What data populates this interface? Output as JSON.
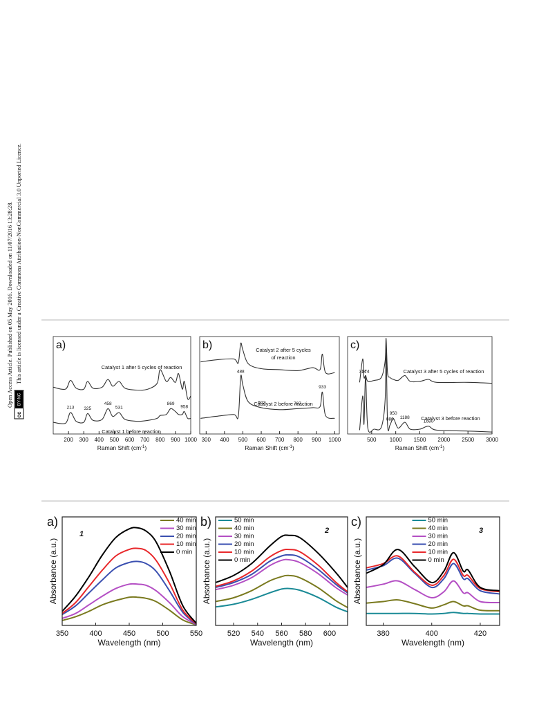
{
  "sidebar": {
    "line1": "Open Access Article. Published on 05 May 2016. Downloaded on 11/07/2016 13:28:28.",
    "line2": "This article is licensed under a Creative Commons Attribution-NonCommercial 3.0 Unported Licence.",
    "badge_cc": "cc",
    "badge_text": "BY-NC"
  },
  "chart_data": [
    {
      "type": "line",
      "panel_label": "a)",
      "xlim": [
        100,
        1000
      ],
      "xticks": [
        200,
        300,
        400,
        500,
        600,
        700,
        800,
        900,
        1000
      ],
      "ylim": [
        0,
        10
      ],
      "xlabel": "Raman Shift (cm",
      "xlabel_sup": "-1",
      "xlabel_end": ")",
      "notes": [
        "Catalyst 1 after 5 cycles of reaction",
        "Catalyst 1 before reaction"
      ],
      "peak_labels": [
        213,
        325,
        458,
        531,
        869,
        958
      ],
      "x": [
        100,
        180,
        213,
        250,
        300,
        325,
        360,
        420,
        458,
        490,
        531,
        570,
        650,
        720,
        780,
        800,
        840,
        869,
        900,
        920,
        945,
        958,
        980,
        1000
      ],
      "series": [
        {
          "color": "#333333",
          "values": [
            4.8,
            4.6,
            5.5,
            4.7,
            4.6,
            5.4,
            4.7,
            4.8,
            5.6,
            4.9,
            5.4,
            4.7,
            4.5,
            4.6,
            5.2,
            6.6,
            5.4,
            5.8,
            5.3,
            6.2,
            4.6,
            5.4,
            3.6,
            3.9
          ]
        },
        {
          "color": "#333333",
          "values": [
            1.2,
            1.1,
            2.2,
            1.3,
            1.2,
            2.1,
            1.4,
            1.5,
            2.6,
            1.8,
            2.2,
            1.5,
            1.3,
            1.4,
            1.6,
            1.9,
            2.0,
            2.6,
            2.3,
            2.0,
            2.0,
            2.3,
            1.6,
            1.6
          ]
        }
      ]
    },
    {
      "type": "line",
      "panel_label": "b)",
      "xlim": [
        265,
        1025
      ],
      "xticks": [
        300,
        400,
        500,
        600,
        700,
        800,
        900,
        1000
      ],
      "ylim": [
        0,
        10
      ],
      "xlabel": "Raman Shift (cm",
      "xlabel_sup": "-1",
      "xlabel_end": ")",
      "notes": [
        "Catalyst 2 after 5 cycles",
        "of reaction",
        "Catalyst 2 before reaction"
      ],
      "peak_labels": [
        488,
        602,
        797,
        933
      ],
      "x": [
        270,
        350,
        450,
        475,
        488,
        500,
        530,
        600,
        700,
        797,
        880,
        920,
        933,
        950,
        1000
      ],
      "series": [
        {
          "color": "#333333",
          "values": [
            7.4,
            7.6,
            7.7,
            7.3,
            9.3,
            8.6,
            7.2,
            6.7,
            6.6,
            6.5,
            6.8,
            6.6,
            8.2,
            6.3,
            6.3
          ]
        },
        {
          "color": "#333333",
          "values": [
            1.6,
            1.8,
            2.0,
            1.8,
            5.9,
            5.0,
            3.3,
            2.7,
            2.5,
            2.6,
            2.7,
            2.8,
            4.3,
            1.9,
            1.6
          ]
        }
      ]
    },
    {
      "type": "line",
      "panel_label": "c)",
      "xlim": [
        0,
        3000
      ],
      "xticks": [
        500,
        1000,
        1500,
        2000,
        2500,
        3000
      ],
      "ylim": [
        0,
        10
      ],
      "xlabel": "Raman Shift (cm",
      "xlabel_sup": "-1",
      "xlabel_end": ")",
      "notes": [
        "Catalyst 3 after 5 cycles of reaction",
        "Catalyst 3 before reaction"
      ],
      "peak_labels": [
        314,
        374,
        880,
        950,
        1188,
        1680
      ],
      "x": [
        250,
        314,
        340,
        374,
        420,
        550,
        700,
        780,
        800,
        830,
        880,
        950,
        1050,
        1188,
        1300,
        1500,
        1680,
        1850,
        2500,
        3000
      ],
      "series": [
        {
          "color": "#333333",
          "values": [
            5.3,
            7.7,
            5.8,
            6.0,
            5.4,
            5.5,
            5.8,
            7.5,
            9.8,
            6.3,
            5.8,
            5.6,
            5.5,
            6.0,
            5.4,
            5.4,
            5.6,
            5.3,
            5.3,
            5.2
          ]
        },
        {
          "color": "#333333",
          "values": [
            0.4,
            3.9,
            1.0,
            5.9,
            0.6,
            0.5,
            0.7,
            3.5,
            9.4,
            1.0,
            0.9,
            1.6,
            0.6,
            1.2,
            0.5,
            0.5,
            0.8,
            0.4,
            0.3,
            0.2
          ]
        }
      ]
    },
    {
      "type": "line",
      "panel_label": "a)",
      "sample_label": "1",
      "legend": "upper right",
      "xlim": [
        350,
        550
      ],
      "xticks": [
        350,
        400,
        450,
        500,
        550
      ],
      "ylim": [
        0,
        10
      ],
      "xlabel": "Wavelength (nm)",
      "ylabel": "Absorbance (a.u.)",
      "x": [
        350,
        370,
        390,
        410,
        430,
        450,
        462,
        475,
        490,
        510,
        530,
        550
      ],
      "series": [
        {
          "name": "40 min",
          "color": "#7a7a1f",
          "values": [
            0.45,
            0.8,
            1.3,
            1.9,
            2.3,
            2.6,
            2.6,
            2.5,
            2.2,
            1.4,
            0.5,
            0.05
          ]
        },
        {
          "name": "30 min",
          "color": "#b44fc4",
          "values": [
            0.65,
            1.1,
            1.9,
            2.7,
            3.4,
            3.8,
            3.8,
            3.7,
            3.2,
            2.1,
            0.8,
            0.08
          ]
        },
        {
          "name": "20 min",
          "color": "#3a4fb0",
          "values": [
            1.0,
            1.8,
            3.0,
            4.2,
            5.3,
            5.8,
            5.9,
            5.7,
            5.0,
            3.2,
            1.2,
            0.1
          ]
        },
        {
          "name": "10 min",
          "color": "#e8282b",
          "values": [
            1.1,
            2.1,
            3.6,
            5.1,
            6.4,
            7.0,
            7.1,
            6.9,
            6.0,
            3.9,
            1.4,
            0.15
          ]
        },
        {
          "name": "0 min",
          "color": "#000000",
          "values": [
            1.3,
            2.7,
            4.5,
            6.5,
            8.1,
            8.9,
            9.0,
            8.7,
            7.7,
            5.0,
            1.8,
            0.2
          ]
        }
      ]
    },
    {
      "type": "line",
      "panel_label": "b)",
      "sample_label": "2",
      "legend": "upper left",
      "xlim": [
        505,
        615
      ],
      "xticks": [
        520,
        540,
        560,
        580,
        600
      ],
      "ylim": [
        0,
        10
      ],
      "xlabel": "Wavelength (nm)",
      "ylabel": "Absorbance (a.u.)",
      "x": [
        505,
        520,
        535,
        550,
        560,
        566,
        575,
        590,
        605,
        615
      ],
      "series": [
        {
          "name": "50 min",
          "color": "#1a8a96",
          "values": [
            1.7,
            1.95,
            2.4,
            3.0,
            3.35,
            3.4,
            3.25,
            2.6,
            1.7,
            1.25
          ]
        },
        {
          "name": "40 min",
          "color": "#7a7a1f",
          "values": [
            2.2,
            2.55,
            3.2,
            4.1,
            4.5,
            4.6,
            4.4,
            3.5,
            2.3,
            1.65
          ]
        },
        {
          "name": "30 min",
          "color": "#b44fc4",
          "values": [
            3.3,
            3.7,
            4.4,
            5.5,
            6.0,
            6.05,
            5.8,
            4.8,
            3.5,
            2.8
          ]
        },
        {
          "name": "20 min",
          "color": "#3a4fb0",
          "values": [
            3.5,
            3.95,
            4.7,
            5.9,
            6.4,
            6.5,
            6.3,
            5.2,
            3.8,
            3.0
          ]
        },
        {
          "name": "10 min",
          "color": "#e8282b",
          "values": [
            3.6,
            4.1,
            5.0,
            6.3,
            6.9,
            7.0,
            6.8,
            5.6,
            4.0,
            3.1
          ]
        },
        {
          "name": "0 min",
          "color": "#000000",
          "values": [
            3.95,
            4.6,
            5.7,
            7.3,
            8.2,
            8.3,
            8.1,
            6.7,
            4.9,
            3.5
          ]
        }
      ]
    },
    {
      "type": "line",
      "panel_label": "c)",
      "sample_label": "3",
      "legend": "upper center",
      "xlim": [
        373,
        428
      ],
      "xticks": [
        380,
        400,
        420
      ],
      "ylim": [
        0,
        10
      ],
      "xlabel": "Wavelength (nm)",
      "ylabel": "Absorbance (a.u.)",
      "x": [
        373,
        380,
        386,
        393,
        400,
        405,
        409,
        413,
        415,
        420,
        428
      ],
      "series": [
        {
          "name": "50 min",
          "color": "#1a8a96",
          "values": [
            1.1,
            1.1,
            1.1,
            1.1,
            1.05,
            1.1,
            1.2,
            1.1,
            1.1,
            1.05,
            1.05
          ]
        },
        {
          "name": "40 min",
          "color": "#7a7a1f",
          "values": [
            2.05,
            2.2,
            2.35,
            2.0,
            1.6,
            1.9,
            2.2,
            1.8,
            1.8,
            1.4,
            1.35
          ]
        },
        {
          "name": "30 min",
          "color": "#b44fc4",
          "values": [
            3.5,
            3.8,
            4.1,
            3.3,
            2.55,
            3.1,
            4.1,
            3.0,
            3.0,
            2.2,
            2.1
          ]
        },
        {
          "name": "20 min",
          "color": "#3a4fb0",
          "values": [
            5.1,
            5.5,
            6.2,
            4.8,
            3.5,
            4.3,
            5.7,
            4.3,
            4.3,
            3.2,
            2.9
          ]
        },
        {
          "name": "10 min",
          "color": "#e8282b",
          "values": [
            5.3,
            5.7,
            6.4,
            4.9,
            3.7,
            4.6,
            6.1,
            4.6,
            4.6,
            3.4,
            3.1
          ]
        },
        {
          "name": "0 min",
          "color": "#000000",
          "values": [
            4.8,
            5.6,
            7.0,
            5.4,
            3.95,
            5.0,
            6.7,
            5.0,
            5.1,
            3.5,
            3.2
          ]
        }
      ]
    }
  ]
}
